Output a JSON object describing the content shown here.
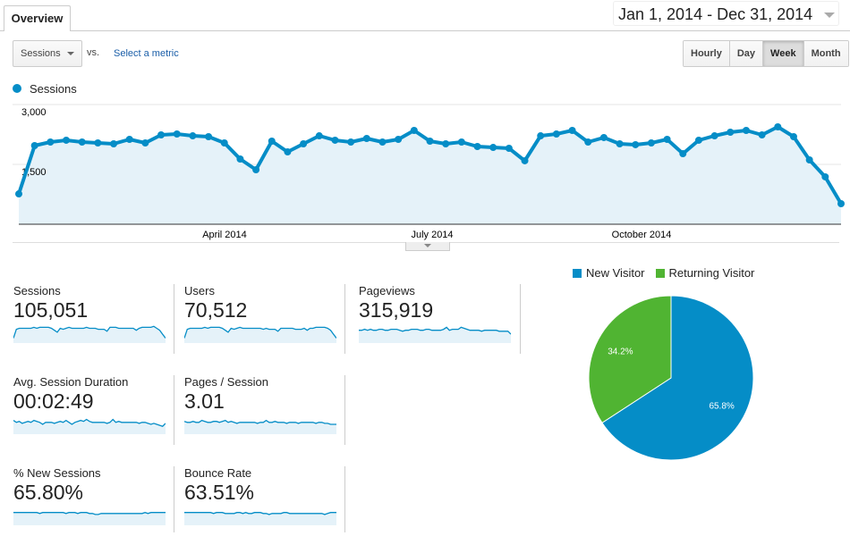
{
  "tabs": [
    {
      "label": "Overview",
      "active": true
    }
  ],
  "date_range": "Jan 1, 2014 - Dec 31, 2014",
  "metric_selector": {
    "value": "Sessions",
    "vs_label": "vs.",
    "compare_link": "Select a metric"
  },
  "granularity": {
    "options": [
      "Hourly",
      "Day",
      "Week",
      "Month"
    ],
    "selected": "Week"
  },
  "colors": {
    "primary": "#058dc7",
    "area": "#e5f2f9",
    "new_visitor": "#058dc7",
    "returning_visitor": "#50b432"
  },
  "chart_data": [
    {
      "type": "line",
      "legend": [
        "Sessions"
      ],
      "y_ticks": [
        "3,000",
        "1,500"
      ],
      "ylim": [
        0,
        3000
      ],
      "x_ticks": [
        "April 2014",
        "July 2014",
        "October 2014"
      ],
      "grid": true,
      "series": [
        {
          "name": "Sessions",
          "values": [
            760,
            1970,
            2060,
            2105,
            2060,
            2037,
            2015,
            2127,
            2037,
            2239,
            2261,
            2216,
            2194,
            2037,
            1634,
            1366,
            2082,
            1813,
            2015,
            2216,
            2105,
            2060,
            2149,
            2060,
            2127,
            2351,
            2082,
            2015,
            2060,
            1948,
            1925,
            1903,
            1590,
            2216,
            2261,
            2351,
            2060,
            2172,
            2015,
            1993,
            2037,
            2127,
            1769,
            2105,
            2216,
            2306,
            2351,
            2239,
            2440,
            2194,
            1612,
            1187,
            515
          ]
        }
      ]
    },
    {
      "type": "pie",
      "legend": [
        "New Visitor",
        "Returning Visitor"
      ],
      "values": [
        65.8,
        34.2
      ],
      "labels": [
        "65.8%",
        "34.2%"
      ]
    }
  ],
  "metrics": [
    {
      "label": "Sessions",
      "value": "105,051",
      "spark": [
        5,
        14,
        15,
        15,
        15,
        15,
        15,
        16,
        15,
        16,
        16,
        16,
        16,
        15,
        13,
        11,
        15,
        14,
        15,
        16,
        15,
        15,
        15,
        15,
        15,
        16,
        15,
        15,
        15,
        14,
        14,
        14,
        12,
        16,
        16,
        16,
        15,
        15,
        15,
        15,
        15,
        15,
        13,
        15,
        16,
        16,
        16,
        16,
        17,
        15,
        13,
        9,
        5
      ]
    },
    {
      "label": "Users",
      "value": "70,512",
      "spark": [
        5,
        14,
        15,
        15,
        15,
        15,
        15,
        16,
        15,
        16,
        16,
        16,
        16,
        15,
        13,
        11,
        15,
        14,
        15,
        16,
        15,
        15,
        15,
        15,
        15,
        15,
        15,
        14,
        15,
        14,
        14,
        14,
        12,
        15,
        15,
        15,
        15,
        15,
        14,
        14,
        14,
        15,
        13,
        15,
        15,
        16,
        16,
        16,
        16,
        15,
        13,
        9,
        5
      ]
    },
    {
      "label": "Pageviews",
      "value": "315,919",
      "spark": [
        13,
        13,
        14,
        13,
        14,
        13,
        13,
        14,
        14,
        13,
        13,
        14,
        14,
        14,
        13,
        12,
        13,
        13,
        14,
        14,
        14,
        13,
        13,
        14,
        14,
        13,
        13,
        13,
        13,
        14,
        16,
        13,
        14,
        14,
        14,
        16,
        15,
        14,
        13,
        13,
        13,
        13,
        12,
        13,
        13,
        13,
        13,
        13,
        12,
        12,
        12,
        12,
        9
      ]
    },
    {
      "label": "Avg. Session Duration",
      "value": "00:02:49",
      "spark": [
        14,
        12,
        13,
        11,
        12,
        13,
        12,
        14,
        13,
        12,
        10,
        12,
        12,
        12,
        11,
        12,
        13,
        12,
        14,
        12,
        10,
        12,
        13,
        14,
        13,
        15,
        13,
        12,
        12,
        12,
        12,
        12,
        11,
        12,
        15,
        12,
        13,
        12,
        12,
        12,
        12,
        12,
        12,
        11,
        12,
        12,
        11,
        10,
        11,
        10,
        9,
        8,
        11
      ]
    },
    {
      "label": "Pages / Session",
      "value": "3.01",
      "spark": [
        13,
        12,
        12,
        13,
        12,
        12,
        14,
        13,
        12,
        12,
        13,
        13,
        12,
        13,
        14,
        12,
        13,
        12,
        11,
        12,
        12,
        12,
        12,
        12,
        12,
        11,
        12,
        12,
        14,
        12,
        12,
        13,
        12,
        12,
        12,
        11,
        12,
        12,
        12,
        11,
        12,
        12,
        12,
        12,
        12,
        11,
        12,
        12,
        11,
        11,
        10,
        10,
        10
      ]
    },
    {
      "label": "% New Sessions",
      "value": "65.80%",
      "spark": [
        13,
        13,
        13,
        13,
        13,
        13,
        13,
        13,
        13,
        12,
        13,
        13,
        13,
        13,
        13,
        13,
        13,
        13,
        12,
        13,
        13,
        13,
        12,
        13,
        13,
        13,
        12,
        12,
        11,
        11,
        12,
        12,
        12,
        12,
        12,
        12,
        12,
        12,
        12,
        12,
        12,
        12,
        12,
        12,
        12,
        13,
        12,
        13,
        13,
        13,
        13,
        13,
        13
      ]
    },
    {
      "label": "Bounce Rate",
      "value": "63.51%",
      "spark": [
        13,
        13,
        13,
        13,
        13,
        13,
        13,
        13,
        13,
        13,
        12,
        13,
        13,
        13,
        12,
        12,
        12,
        12,
        13,
        13,
        12,
        13,
        12,
        12,
        13,
        13,
        13,
        12,
        12,
        11,
        12,
        12,
        12,
        12,
        13,
        13,
        12,
        12,
        12,
        12,
        12,
        12,
        12,
        12,
        12,
        12,
        12,
        12,
        11,
        12,
        13,
        13,
        13
      ]
    }
  ]
}
